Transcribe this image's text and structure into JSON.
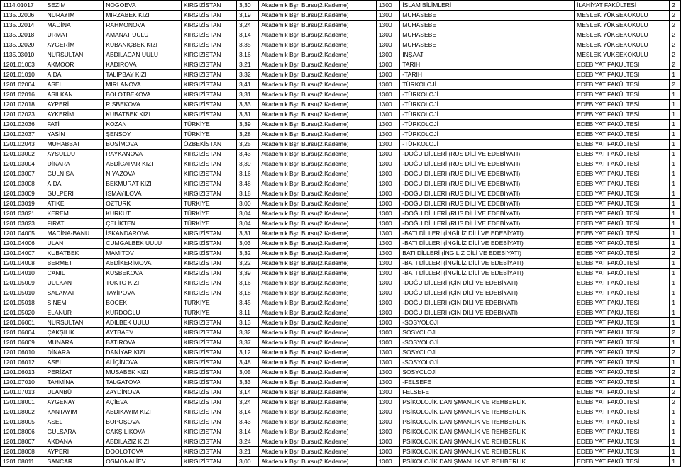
{
  "rows": [
    [
      "1114.01017",
      "SEZİM",
      "NOGOEVA",
      "KIRGIZİSTAN",
      "3,30",
      "Akademik Bşr. Bursu(2.Kademe)",
      "1300",
      "İSLAM BİLİMLERİ",
      "İLAHİYAT FAKÜLTESİ",
      "2"
    ],
    [
      "1135.02006",
      "NURAYIM",
      "MIRZABEK KIZI",
      "KIRGIZİSTAN",
      "3,19",
      "Akademik Bşr. Bursu(2.Kademe)",
      "1300",
      "MUHASEBE",
      "MESLEK YÜKSEKOKULU",
      "2"
    ],
    [
      "1135.02014",
      "MADİNA",
      "RAHMONOVA",
      "KIRGIZİSTAN",
      "3,24",
      "Akademik Bşr. Bursu(2.Kademe)",
      "1300",
      "MUHASEBE",
      "MESLEK YÜKSEKOKULU",
      "2"
    ],
    [
      "1135.02018",
      "URMAT",
      "AMANAT UULU",
      "KIRGIZİSTAN",
      "3,14",
      "Akademik Bşr. Bursu(2.Kademe)",
      "1300",
      "MUHASEBE",
      "MESLEK YÜKSEKOKULU",
      "2"
    ],
    [
      "1135.02020",
      "AYGERİM",
      "KUBANIÇBEK KIZI",
      "KIRGIZİSTAN",
      "3,35",
      "Akademik Bşr. Bursu(2.Kademe)",
      "1300",
      "MUHASEBE",
      "MESLEK YÜKSEKOKULU",
      "2"
    ],
    [
      "1135.03010",
      "NURSULTAN",
      "ABDİLACAN UULU",
      "KIRGIZİSTAN",
      "3,16",
      "Akademik Bşr. Bursu(2.Kademe)",
      "1300",
      "İNŞAAT",
      "MESLEK YÜKSEKOKULU",
      "2"
    ],
    [
      "1201.01003",
      "AKMÖÖR",
      "KADIROVA",
      "KIRGIZİSTAN",
      "3,21",
      "Akademik Bşr. Bursu(2.Kademe)",
      "1300",
      "TARİH",
      "EDEBİYAT FAKÜLTESİ",
      "2"
    ],
    [
      "1201.01010",
      "AİDA",
      "TALİPBAY KIZI",
      "KIRGIZİSTAN",
      "3,32",
      "Akademik Bşr. Bursu(2.Kademe)",
      "1300",
      "-TARİH",
      "EDEBİYAT FAKÜLTESİ",
      "1"
    ],
    [
      "1201.02004",
      "ASEL",
      "MIRLANOVA",
      "KIRGIZİSTAN",
      "3,41",
      "Akademik Bşr. Bursu(2.Kademe)",
      "1300",
      "TÜRKOLOJİ",
      "EDEBİYAT FAKÜLTESİ",
      "2"
    ],
    [
      "1201.02016",
      "ASILKAN",
      "BOLOTBEKOVA",
      "KIRGIZİSTAN",
      "3,31",
      "Akademik Bşr. Bursu(2.Kademe)",
      "1300",
      "-TÜRKOLOJİ",
      "EDEBİYAT FAKÜLTESİ",
      "1"
    ],
    [
      "1201.02018",
      "AYPERİ",
      "RISBEKOVA",
      "KIRGIZİSTAN",
      "3,33",
      "Akademik Bşr. Bursu(2.Kademe)",
      "1300",
      "-TÜRKOLOJİ",
      "EDEBİYAT FAKÜLTESİ",
      "1"
    ],
    [
      "1201.02023",
      "AYKERİM",
      "KUBATBEK KIZI",
      "KIRGIZİSTAN",
      "3,31",
      "Akademik Bşr. Bursu(2.Kademe)",
      "1300",
      "-TÜRKOLOJİ",
      "EDEBİYAT FAKÜLTESİ",
      "1"
    ],
    [
      "1201.02036",
      "FATİ",
      "KOZAN",
      "TÜRKİYE",
      "3,39",
      "Akademik Bşr. Bursu(2.Kademe)",
      "1300",
      "-TÜRKOLOJİ",
      "EDEBİYAT FAKÜLTESİ",
      "1"
    ],
    [
      "1201.02037",
      "YASİN",
      "ŞENSOY",
      "TÜRKİYE",
      "3,28",
      "Akademik Bşr. Bursu(2.Kademe)",
      "1300",
      "-TÜRKOLOJİ",
      "EDEBİYAT FAKÜLTESİ",
      "1"
    ],
    [
      "1201.02043",
      "MUHABBAT",
      "BOSİMOVA",
      "ÖZBEKİSTAN",
      "3,25",
      "Akademik Bşr. Bursu(2.Kademe)",
      "1300",
      "-TÜRKOLOJİ",
      "EDEBİYAT FAKÜLTESİ",
      "1"
    ],
    [
      "1201.03002",
      "AYSULUU",
      "RAYKANOVA",
      "KIRGIZİSTAN",
      "3,43",
      "Akademik Bşr. Bursu(2.Kademe)",
      "1300",
      "-DOĞU DİLLERİ (RUS DİLİ VE EDEBİYATI)",
      "EDEBİYAT FAKÜLTESİ",
      "1"
    ],
    [
      "1201.03004",
      "DİNARA",
      "ABDİCAPAR KIZI",
      "KIRGIZİSTAN",
      "3,39",
      "Akademik Bşr. Bursu(2.Kademe)",
      "1300",
      "-DOĞU DİLLERİ (RUS DİLİ VE EDEBİYATI)",
      "EDEBİYAT FAKÜLTESİ",
      "1"
    ],
    [
      "1201.03007",
      "GULNİSA",
      "NİYAZOVA",
      "KIRGIZİSTAN",
      "3,16",
      "Akademik Bşr. Bursu(2.Kademe)",
      "1300",
      "-DOĞU DİLLERİ (RUS DİLİ VE EDEBİYATI)",
      "EDEBİYAT FAKÜLTESİ",
      "1"
    ],
    [
      "1201.03008",
      "AİDA",
      "BEKMURAT KIZI",
      "KIRGIZİSTAN",
      "3,48",
      "Akademik Bşr. Bursu(2.Kademe)",
      "1300",
      "-DOĞU DİLLERİ (RUS DİLİ VE EDEBİYATI)",
      "EDEBİYAT FAKÜLTESİ",
      "1"
    ],
    [
      "1201.03009",
      "GÜLPERİ",
      "İSMAYİLOVA",
      "KIRGIZİSTAN",
      "3,18",
      "Akademik Bşr. Bursu(2.Kademe)",
      "1300",
      "-DOĞU DİLLERİ (RUS DİLİ VE EDEBİYATI)",
      "EDEBİYAT FAKÜLTESİ",
      "1"
    ],
    [
      "1201.03019",
      "ATİKE",
      "ÖZTÜRK",
      "TÜRKİYE",
      "3,00",
      "Akademik Bşr. Bursu(2.Kademe)",
      "1300",
      "-DOĞU DİLLERİ (RUS DİLİ VE EDEBİYATI)",
      "EDEBİYAT FAKÜLTESİ",
      "1"
    ],
    [
      "1201.03021",
      "KEREM",
      "KURKUT",
      "TÜRKİYE",
      "3,04",
      "Akademik Bşr. Bursu(2.Kademe)",
      "1300",
      "-DOĞU DİLLERİ (RUS DİLİ VE EDEBİYATI)",
      "EDEBİYAT FAKÜLTESİ",
      "1"
    ],
    [
      "1201.03023",
      "FIRAT",
      "ÇELİKTEN",
      "TÜRKİYE",
      "3,04",
      "Akademik Bşr. Bursu(2.Kademe)",
      "1300",
      "-DOĞU DİLLERİ (RUS DİLİ VE EDEBİYATI)",
      "EDEBİYAT FAKÜLTESİ",
      "1"
    ],
    [
      "1201.04005",
      "MADİNA-BANU",
      "İSKANDAROVA",
      "KIRGIZİSTAN",
      "3,31",
      "Akademik Bşr. Bursu(2.Kademe)",
      "1300",
      "-BATI DİLLERİ (İNGİLİZ DİLİ VE EDEBİYATI)",
      "EDEBİYAT FAKÜLTESİ",
      "1"
    ],
    [
      "1201.04006",
      "ULAN",
      "CUMGALBEK UULU",
      "KIRGIZİSTAN",
      "3,03",
      "Akademik Bşr. Bursu(2.Kademe)",
      "1300",
      "-BATI DİLLERİ (İNGİLİZ DİLİ VE EDEBİYATI)",
      "EDEBİYAT FAKÜLTESİ",
      "1"
    ],
    [
      "1201.04007",
      "KUBATBEK",
      "MAMİTOV",
      "KIRGIZİSTAN",
      "3,32",
      "Akademik Bşr. Bursu(2.Kademe)",
      "1300",
      "BATI DİLLERİ (İNGİLİZ DİLİ VE EDEBİYATI)",
      "EDEBİYAT FAKÜLTESİ",
      "2"
    ],
    [
      "1201.04008",
      "BERMET",
      "ABDİKERİMOVA",
      "KIRGIZİSTAN",
      "3,22",
      "Akademik Bşr. Bursu(2.Kademe)",
      "1300",
      "-BATI DİLLERİ (İNGİLİZ DİLİ VE EDEBİYATI)",
      "EDEBİYAT FAKÜLTESİ",
      "1"
    ],
    [
      "1201.04010",
      "CANIL",
      "KUSBEKOVA",
      "KIRGIZİSTAN",
      "3,39",
      "Akademik Bşr. Bursu(2.Kademe)",
      "1300",
      "-BATI DİLLERİ (İNGİLİZ DİLİ VE EDEBİYATI)",
      "EDEBİYAT FAKÜLTESİ",
      "1"
    ],
    [
      "1201.05009",
      "UULKAN",
      "TOKTO KIZI",
      "KIRGIZİSTAN",
      "3,16",
      "Akademik Bşr. Bursu(2.Kademe)",
      "1300",
      "-DOĞU DİLLERİ (ÇİN DİLİ VE EDEBİYATI)",
      "EDEBİYAT FAKÜLTESİ",
      "1"
    ],
    [
      "1201.05010",
      "SALAMAT",
      "TAYİPOVA",
      "KIRGIZİSTAN",
      "3,18",
      "Akademik Bşr. Bursu(2.Kademe)",
      "1300",
      "-DOĞU DİLLERİ (ÇİN DİLİ VE EDEBİYATI)",
      "EDEBİYAT FAKÜLTESİ",
      "1"
    ],
    [
      "1201.05018",
      "SİNEM",
      "BÖCEK",
      "TÜRKİYE",
      "3,45",
      "Akademik Bşr. Bursu(2.Kademe)",
      "1300",
      "-DOĞU DİLLERİ (ÇİN DİLİ VE EDEBİYATI)",
      "EDEBİYAT FAKÜLTESİ",
      "1"
    ],
    [
      "1201.05020",
      "ELANUR",
      "KURDOĞLU",
      "TÜRKİYE",
      "3,11",
      "Akademik Bşr. Bursu(2.Kademe)",
      "1300",
      "-DOĞU DİLLERİ (ÇİN DİLİ VE EDEBİYATI)",
      "EDEBİYAT FAKÜLTESİ",
      "1"
    ],
    [
      "1201.06001",
      "NURSULTAN",
      "ADILBEK UULU",
      "KIRGIZİSTAN",
      "3,13",
      "Akademik Bşr. Bursu(2.Kademe)",
      "1300",
      "-SOSYOLOJİ",
      "EDEBİYAT FAKÜLTESİ",
      "1"
    ],
    [
      "1201.06004",
      "ÇAKŞILIK",
      "AYTBAEV",
      "KIRGIZİSTAN",
      "3,32",
      "Akademik Bşr. Bursu(2.Kademe)",
      "1300",
      "SOSYOLOJİ",
      "EDEBİYAT FAKÜLTESİ",
      "2"
    ],
    [
      "1201.06009",
      "MUNARA",
      "BATIROVA",
      "KIRGIZİSTAN",
      "3,37",
      "Akademik Bşr. Bursu(2.Kademe)",
      "1300",
      "-SOSYOLOJİ",
      "EDEBİYAT FAKÜLTESİ",
      "1"
    ],
    [
      "1201.06010",
      "DİNARA",
      "DANİYAR KIZI",
      "KIRGIZİSTAN",
      "3,12",
      "Akademik Bşr. Bursu(2.Kademe)",
      "1300",
      "SOSYOLOJİ",
      "EDEBİYAT FAKÜLTESİ",
      "2"
    ],
    [
      "1201.06012",
      "ASEL",
      "ALİÇİNOVA",
      "KIRGIZİSTAN",
      "3,48",
      "Akademik Bşr. Bursu(2.Kademe)",
      "1300",
      "-SOSYOLOJİ",
      "EDEBİYAT FAKÜLTESİ",
      "1"
    ],
    [
      "1201.06013",
      "PERİZAT",
      "MUSABEK KIZI",
      "KIRGIZİSTAN",
      "3,05",
      "Akademik Bşr. Bursu(2.Kademe)",
      "1300",
      "SOSYOLOJİ",
      "EDEBİYAT FAKÜLTESİ",
      "2"
    ],
    [
      "1201.07010",
      "TAHMİNA",
      "TALGATOVA",
      "KIRGIZİSTAN",
      "3,33",
      "Akademik Bşr. Bursu(2.Kademe)",
      "1300",
      "-FELSEFE",
      "EDEBİYAT FAKÜLTESİ",
      "1"
    ],
    [
      "1201.07013",
      "ULANBÜ",
      "ZAYDİNOVA",
      "KIRGIZİSTAN",
      "3,14",
      "Akademik Bşr. Bursu(2.Kademe)",
      "1300",
      "FELSEFE",
      "EDEBİYAT FAKÜLTESİ",
      "2"
    ],
    [
      "1201.08001",
      "AYGENAY",
      "AÇİEVA",
      "KIRGIZİSTAN",
      "3,24",
      "Akademik Bşr. Bursu(2.Kademe)",
      "1300",
      "PSİKOLOJİK DANIŞMANLIK VE REHBERLİK",
      "EDEBİYAT FAKÜLTESİ",
      "2"
    ],
    [
      "1201.08002",
      "KANTAYIM",
      "ABDIKAYIM KIZI",
      "KIRGIZİSTAN",
      "3,14",
      "Akademik Bşr. Bursu(2.Kademe)",
      "1300",
      "PSİKOLOJİK DANIŞMANLIK VE REHBERLİK",
      "EDEBİYAT FAKÜLTESİ",
      "1"
    ],
    [
      "1201.08005",
      "ASEL",
      "BOPOŞOVA",
      "KIRGIZİSTAN",
      "3,43",
      "Akademik Bşr. Bursu(2.Kademe)",
      "1300",
      "PSİKOLOJİK DANIŞMANLIK VE REHBERLİK",
      "EDEBİYAT FAKÜLTESİ",
      "1"
    ],
    [
      "1201.08006",
      "GÜLSARA",
      "CAKŞILIKOVA",
      "KIRGIZİSTAN",
      "3,14",
      "Akademik Bşr. Bursu(2.Kademe)",
      "1300",
      "PSİKOLOJİK DANIŞMANLIK VE REHBERLİK",
      "EDEBİYAT FAKÜLTESİ",
      "1"
    ],
    [
      "1201.08007",
      "AKDANA",
      "ABDİLAZİZ KIZI",
      "KIRGIZİSTAN",
      "3,24",
      "Akademik Bşr. Bursu(2.Kademe)",
      "1300",
      "PSİKOLOJİK DANIŞMANLIK VE REHBERLİK",
      "EDEBİYAT FAKÜLTESİ",
      "1"
    ],
    [
      "1201.08008",
      "AYPERİ",
      "DÖÖLÖTOVA",
      "KIRGIZİSTAN",
      "3,21",
      "Akademik Bşr. Bursu(2.Kademe)",
      "1300",
      "PSİKOLOJİK DANIŞMANLIK VE REHBERLİK",
      "EDEBİYAT FAKÜLTESİ",
      "1"
    ],
    [
      "1201.08011",
      "SANCAR",
      "OSMONALİEV",
      "KIRGIZİSTAN",
      "3,00",
      "Akademik Bşr. Bursu(2.Kademe)",
      "1300",
      "PSİKOLOJİK DANIŞMANLIK VE REHBERLİK",
      "EDEBİYAT FAKÜLTESİ",
      "1"
    ]
  ]
}
